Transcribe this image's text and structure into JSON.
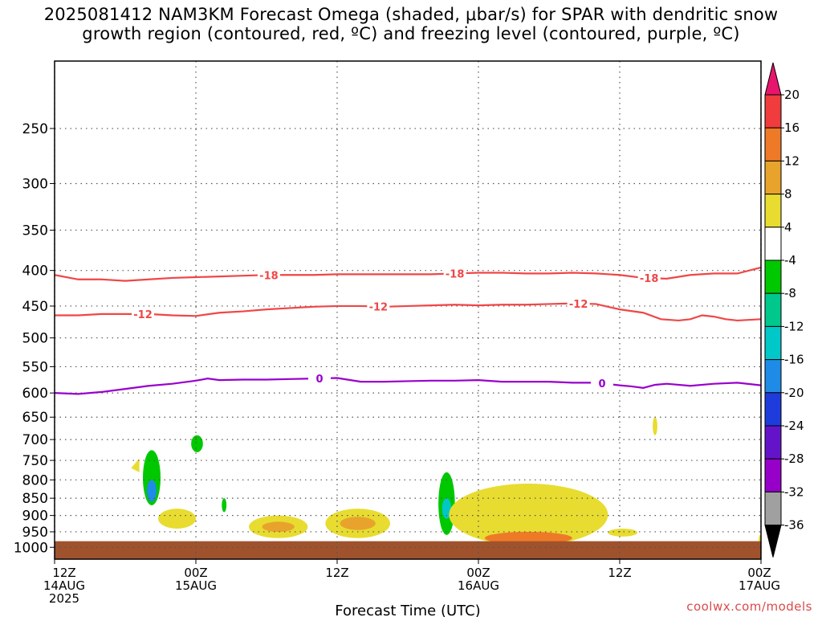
{
  "title": {
    "line1": "2025081412 NAM3KM Forecast Omega (shaded, μbar/s) for SPAR with dendritic snow",
    "line2": "growth region (contoured, red, ºC) and freezing level (contoured, purple, ºC)"
  },
  "credit": "coolwx.com/models",
  "chart_data": {
    "type": "heatmap",
    "title": "2025081412 NAM3KM Forecast Omega (shaded, μbar/s) for SPAR with dendritic snow growth region (contoured, red, ºC) and freezing level (contoured, purple, ºC)",
    "xlabel": "Forecast Time (UTC)",
    "ylabel": "",
    "x_unit": "forecast hour from 2025-08-14 12Z",
    "xlim": [
      0,
      60
    ],
    "y_scale": "pressure (log, decreasing upward)",
    "ylim": [
      1040,
      200
    ],
    "grid": true,
    "x_ticks": [
      {
        "x": 0,
        "label": "12Z",
        "sub1": "14AUG",
        "sub2": "2025"
      },
      {
        "x": 12,
        "label": "00Z",
        "sub1": "15AUG",
        "sub2": ""
      },
      {
        "x": 24,
        "label": "12Z",
        "sub1": "",
        "sub2": ""
      },
      {
        "x": 36,
        "label": "00Z",
        "sub1": "16AUG",
        "sub2": ""
      },
      {
        "x": 48,
        "label": "12Z",
        "sub1": "",
        "sub2": ""
      },
      {
        "x": 60,
        "label": "00Z",
        "sub1": "17AUG",
        "sub2": ""
      }
    ],
    "y_ticks": [
      250,
      300,
      350,
      400,
      450,
      500,
      550,
      600,
      650,
      700,
      750,
      800,
      850,
      900,
      950,
      1000
    ],
    "surface": {
      "color": "#a0522d",
      "top": 980
    },
    "colorbar": {
      "labels": [
        "20",
        "16",
        "12",
        "8",
        "4",
        "-4",
        "-8",
        "-12",
        "-16",
        "-20",
        "-24",
        "-28",
        "-32",
        "-36"
      ],
      "colors": [
        "#e8156e",
        "#f03c3c",
        "#ee7a28",
        "#e8a32c",
        "#e8dc30",
        "#ffffff",
        "#00c800",
        "#00c88c",
        "#00c8c8",
        "#1e8ce6",
        "#1e3cdc",
        "#6414c8",
        "#9600c8",
        "#a0a0a0",
        "#000000"
      ]
    },
    "series": [
      {
        "name": "-18",
        "color": "#f04646",
        "x": [
          0,
          2,
          4,
          6,
          8,
          10,
          12,
          14,
          16,
          18,
          20,
          22,
          24,
          26,
          28,
          30,
          32,
          34,
          36,
          38,
          40,
          42,
          44,
          46,
          48,
          50,
          52,
          54,
          56,
          58,
          60
        ],
        "y": [
          406,
          412,
          412,
          414,
          412,
          410,
          409,
          408,
          407,
          406,
          406,
          406,
          405,
          405,
          405,
          405,
          405,
          404,
          403,
          403,
          404,
          404,
          403,
          404,
          406,
          410,
          411,
          406,
          404,
          404,
          396
        ],
        "label_x": [
          18.2,
          34,
          50.5
        ]
      },
      {
        "name": "-12",
        "color": "#f04646",
        "x": [
          0,
          2,
          4,
          6,
          8,
          10,
          12,
          14,
          16,
          18,
          20,
          22,
          24,
          26,
          28,
          30,
          32,
          34,
          36,
          38,
          40,
          42,
          44,
          46,
          48,
          50,
          51.5,
          53,
          54,
          55,
          56,
          57,
          58,
          60
        ],
        "y": [
          464,
          464,
          462,
          462,
          462,
          464,
          465,
          460,
          458,
          455,
          453,
          451,
          450,
          450,
          451,
          450,
          449,
          448,
          449,
          448,
          448,
          447,
          446,
          447,
          455,
          460,
          470,
          472,
          470,
          464,
          466,
          470,
          472,
          470
        ],
        "label_x": [
          7.5,
          27.5,
          44.5
        ]
      },
      {
        "name": "0",
        "color": "#9900cc",
        "x": [
          0,
          2,
          4,
          6,
          8,
          10,
          12,
          13,
          14,
          16,
          18,
          20,
          22,
          24,
          26,
          28,
          30,
          32,
          34,
          36,
          38,
          40,
          42,
          44,
          46,
          48,
          49,
          50,
          51,
          52,
          54,
          56,
          58,
          60
        ],
        "y": [
          600,
          602,
          598,
          592,
          586,
          582,
          576,
          572,
          575,
          574,
          574,
          573,
          572,
          571,
          578,
          578,
          577,
          576,
          576,
          575,
          578,
          578,
          578,
          580,
          580,
          585,
          587,
          590,
          584,
          582,
          586,
          582,
          580,
          585
        ],
        "label_x": [
          22.5,
          46.5
        ]
      }
    ],
    "shaded_regions": [
      {
        "fill": "#e8dc30",
        "x": [
          6.5,
          7.2
        ],
        "y": [
          780,
          745
        ],
        "shape": "triangle"
      },
      {
        "fill": "#00c800",
        "x": [
          7.5,
          9
        ],
        "y": [
          870,
          725
        ],
        "core": "#1e8ce6",
        "core_y": [
          860,
          800
        ]
      },
      {
        "fill": "#00c800",
        "x": [
          11.6,
          12.6
        ],
        "y": [
          730,
          690
        ]
      },
      {
        "fill": "#00c800",
        "x": [
          14.2,
          14.6
        ],
        "y": [
          890,
          850
        ]
      },
      {
        "fill": "#e8dc30",
        "x": [
          8.8,
          12
        ],
        "y": [
          940,
          880
        ]
      },
      {
        "fill": "#e8dc30",
        "x": [
          16.5,
          21.5
        ],
        "y": [
          970,
          900
        ],
        "core": "#e8a32c"
      },
      {
        "fill": "#e8dc30",
        "x": [
          23,
          28.5
        ],
        "y": [
          970,
          880
        ],
        "core": "#e8a32c"
      },
      {
        "fill": "#00c800",
        "x": [
          32.6,
          34
        ],
        "y": [
          960,
          780
        ],
        "core": "#00c8c8",
        "core_y": [
          910,
          850
        ]
      },
      {
        "fill": "#e8dc30",
        "x": [
          33.5,
          47
        ],
        "y": [
          995,
          810
        ],
        "core": "#ee7a28",
        "core_y": [
          990,
          950
        ]
      },
      {
        "fill": "#e8dc30",
        "x": [
          47,
          49.5
        ],
        "y": [
          965,
          940
        ]
      },
      {
        "fill": "#e8dc30",
        "x": [
          50.8,
          51.2
        ],
        "y": [
          690,
          650
        ]
      },
      {
        "fill": "#e8dc30",
        "x": [
          59.8,
          60
        ],
        "y": [
          995,
          960
        ]
      }
    ]
  }
}
